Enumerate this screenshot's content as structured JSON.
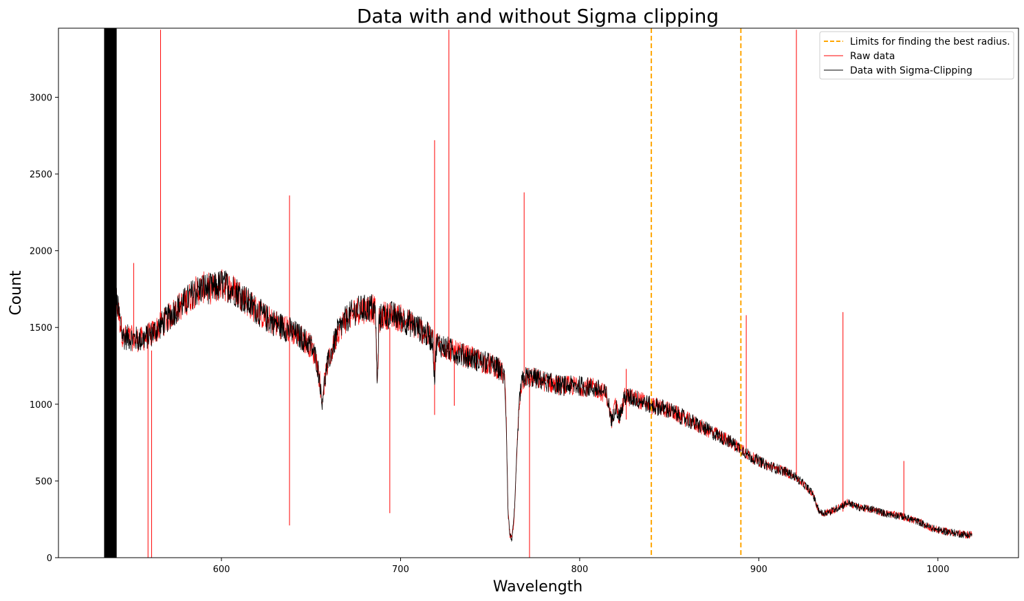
{
  "chart_data": {
    "type": "line",
    "title": "Data with and without Sigma clipping",
    "xlabel": "Wavelength",
    "ylabel": "Count",
    "xlim": [
      509,
      1045
    ],
    "ylim": [
      0,
      3450
    ],
    "xticks": [
      600,
      700,
      800,
      900,
      1000
    ],
    "yticks": [
      0,
      500,
      1000,
      1500,
      2000,
      2500,
      3000
    ],
    "xtick_labels": [
      "600",
      "700",
      "800",
      "900",
      "1000"
    ],
    "ytick_labels": [
      "0",
      "500",
      "1000",
      "1500",
      "2000",
      "2500",
      "3000"
    ],
    "grid": false,
    "legend_position": "top-right",
    "colors": {
      "raw": "#ff0000",
      "clipped": "#000000",
      "limits": "#ffa500"
    },
    "series": [
      {
        "name": "Limits for finding the best radius.",
        "kind": "vline",
        "style": "dashed",
        "x": [
          840,
          890
        ]
      },
      {
        "name": "Raw data",
        "spikes": [
          [
            551,
            1920,
            1380
          ],
          [
            559,
            1400,
            0
          ],
          [
            561,
            1350,
            0
          ],
          [
            566,
            3440,
            1550
          ],
          [
            638,
            2360,
            210
          ],
          [
            719,
            2720,
            930
          ],
          [
            727,
            3440,
            1350
          ],
          [
            730,
            1300,
            990
          ],
          [
            694,
            1500,
            290
          ],
          [
            769,
            2380,
            1200
          ],
          [
            772,
            1150,
            0
          ],
          [
            826,
            1230,
            900
          ],
          [
            893,
            1580,
            700
          ],
          [
            921,
            3440,
            550
          ],
          [
            947,
            1600,
            300
          ],
          [
            981,
            630,
            240
          ]
        ]
      },
      {
        "name": "Data with Sigma-Clipping",
        "x": [
          539,
          541,
          545,
          550,
          555,
          560,
          565,
          570,
          575,
          580,
          585,
          590,
          595,
          600,
          605,
          610,
          615,
          620,
          625,
          630,
          635,
          640,
          645,
          650,
          653,
          655,
          656,
          657,
          659,
          662,
          665,
          670,
          675,
          680,
          684,
          686,
          687,
          688,
          690,
          695,
          700,
          705,
          710,
          715,
          718,
          719,
          720,
          722,
          725,
          730,
          735,
          740,
          745,
          750,
          755,
          758,
          759,
          760,
          761,
          762,
          763,
          764,
          765,
          766,
          767,
          768,
          770,
          775,
          780,
          790,
          800,
          805,
          810,
          815,
          817,
          818,
          820,
          822,
          824,
          825,
          830,
          835,
          840,
          845,
          850,
          855,
          860,
          865,
          870,
          875,
          880,
          885,
          890,
          895,
          900,
          905,
          910,
          915,
          920,
          925,
          930,
          933,
          935,
          940,
          945,
          950,
          955,
          960,
          965,
          970,
          975,
          980,
          985,
          990,
          995,
          1000,
          1005,
          1010,
          1015,
          1019
        ],
        "y": [
          2000,
          1700,
          1440,
          1430,
          1420,
          1450,
          1500,
          1560,
          1620,
          1670,
          1730,
          1760,
          1750,
          1780,
          1760,
          1720,
          1660,
          1610,
          1560,
          1530,
          1500,
          1470,
          1430,
          1380,
          1290,
          1150,
          1000,
          1100,
          1250,
          1360,
          1480,
          1560,
          1610,
          1620,
          1630,
          1600,
          1100,
          1550,
          1580,
          1580,
          1560,
          1530,
          1500,
          1450,
          1420,
          1150,
          1400,
          1390,
          1370,
          1340,
          1320,
          1300,
          1280,
          1260,
          1230,
          1180,
          900,
          300,
          150,
          120,
          200,
          400,
          700,
          950,
          1100,
          1150,
          1180,
          1170,
          1150,
          1120,
          1120,
          1110,
          1100,
          1060,
          950,
          880,
          1000,
          920,
          980,
          1050,
          1040,
          1020,
          990,
          980,
          960,
          930,
          900,
          870,
          840,
          810,
          780,
          750,
          710,
          660,
          630,
          600,
          580,
          560,
          530,
          480,
          420,
          320,
          290,
          300,
          330,
          360,
          330,
          320,
          310,
          290,
          280,
          270,
          250,
          230,
          200,
          180,
          170,
          160,
          150,
          150
        ]
      }
    ]
  }
}
